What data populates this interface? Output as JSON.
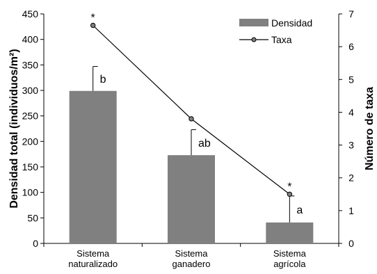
{
  "chart_data": {
    "type": "bar",
    "categories": [
      [
        "Sistema",
        "naturalizado"
      ],
      [
        "Sistema",
        "ganadero"
      ],
      [
        "Sistema",
        "agrícola"
      ]
    ],
    "series": [
      {
        "name": "Densidad",
        "axis": "left",
        "kind": "bar",
        "values": [
          299,
          173,
          41
        ],
        "error_plus": [
          48,
          50,
          52
        ],
        "significance_labels": [
          "b",
          "ab",
          "a"
        ]
      },
      {
        "name": "Taxa",
        "axis": "right",
        "kind": "line",
        "values": [
          6.65,
          3.8,
          1.5
        ],
        "point_markers": [
          "*",
          "",
          "*"
        ]
      }
    ],
    "ylabel": "Densidad total (individuos/m²)",
    "y2label": "Número de taxa",
    "ylim": [
      0,
      450
    ],
    "yticks": [
      0,
      50,
      100,
      150,
      200,
      250,
      300,
      350,
      400,
      450
    ],
    "y2lim": [
      0,
      7
    ],
    "y2ticks": [
      0,
      1,
      2,
      3,
      4,
      5,
      6,
      7
    ],
    "legend_position": "top-right",
    "grid": false,
    "colors": {
      "bar": "#808080",
      "line": "#000000",
      "marker_fill": "#7f7f7f"
    }
  }
}
